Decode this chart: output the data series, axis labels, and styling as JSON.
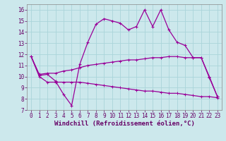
{
  "xlabel": "Windchill (Refroidissement éolien,°C)",
  "background_color": "#cce8ec",
  "grid_color": "#aad4da",
  "line_color": "#990099",
  "x": [
    0,
    1,
    2,
    3,
    4,
    5,
    6,
    7,
    8,
    9,
    10,
    11,
    12,
    13,
    14,
    15,
    16,
    17,
    18,
    19,
    20,
    21,
    22,
    23
  ],
  "y_main": [
    11.8,
    10.1,
    10.2,
    9.6,
    8.4,
    7.4,
    11.1,
    13.1,
    14.7,
    15.2,
    15.0,
    14.8,
    14.2,
    14.5,
    16.0,
    14.5,
    16.0,
    14.2,
    13.1,
    12.8,
    11.7,
    11.7,
    9.9,
    8.2
  ],
  "y_upper": [
    11.8,
    10.2,
    10.3,
    10.3,
    10.5,
    10.6,
    10.8,
    11.0,
    11.1,
    11.2,
    11.3,
    11.4,
    11.5,
    11.5,
    11.6,
    11.7,
    11.7,
    11.8,
    11.8,
    11.7,
    11.7,
    11.7,
    10.0,
    8.2
  ],
  "y_lower": [
    11.8,
    10.0,
    9.5,
    9.5,
    9.5,
    9.5,
    9.5,
    9.4,
    9.3,
    9.2,
    9.1,
    9.0,
    8.9,
    8.8,
    8.7,
    8.7,
    8.6,
    8.5,
    8.5,
    8.4,
    8.3,
    8.2,
    8.2,
    8.1
  ],
  "ylim": [
    7,
    16.5
  ],
  "xlim": [
    -0.5,
    23.5
  ],
  "yticks": [
    7,
    8,
    9,
    10,
    11,
    12,
    13,
    14,
    15,
    16
  ],
  "xticks": [
    0,
    1,
    2,
    3,
    4,
    5,
    6,
    7,
    8,
    9,
    10,
    11,
    12,
    13,
    14,
    15,
    16,
    17,
    18,
    19,
    20,
    21,
    22,
    23
  ],
  "tick_fontsize": 5.5,
  "xlabel_fontsize": 6.5
}
